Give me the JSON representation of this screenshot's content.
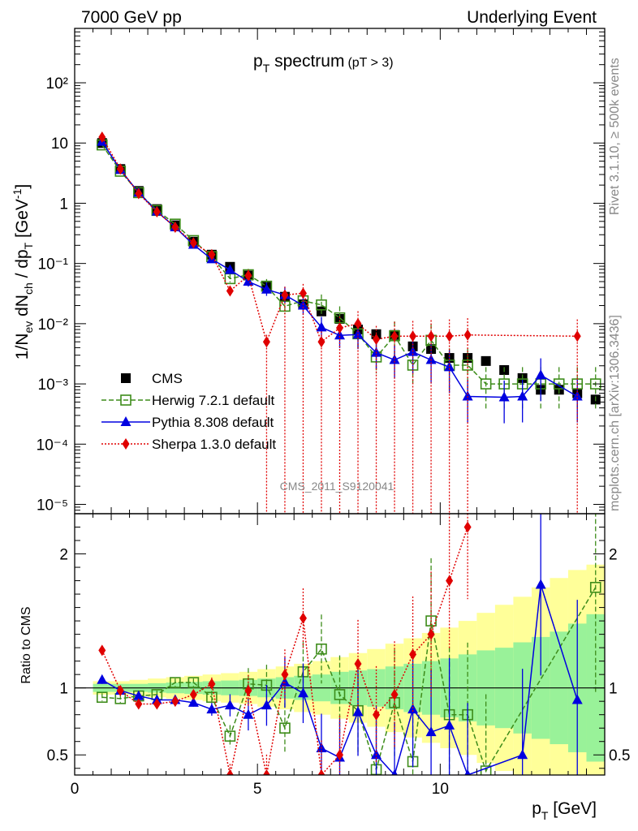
{
  "header": {
    "left": "7000 GeV pp",
    "right": "Underlying Event"
  },
  "side_labels": {
    "rivet": "Rivet 3.1.10, ≥ 500k events",
    "mcplots": "mcplots.cern.ch [arXiv:1306.3436]"
  },
  "watermark": "CMS_2011_S9120041",
  "plot_title": {
    "main": "p",
    "main_sub": "T",
    "main_rest": " spectrum",
    "cut": "(pT >  3)"
  },
  "colors": {
    "cms": "#000000",
    "herwig": "#3d8c1a",
    "pythia": "#0000e0",
    "sherpa": "#e00000",
    "band_inner": "#99f299",
    "band_outer": "#ffff99"
  },
  "chart_data": [
    {
      "type": "scatter",
      "panel": "main",
      "scale": "log",
      "ylabel": "1/N_ev dN_ch / dp_T [GeV^-1]",
      "xlabel": "p_T [GeV]",
      "xlim": [
        0,
        14.5
      ],
      "ylim": [
        7e-06,
        800
      ],
      "x_ticks": [
        "0",
        "5",
        "10"
      ],
      "y_ticks": [
        "10⁻⁵",
        "10⁻⁴",
        "10⁻³",
        "10⁻²",
        "10⁻¹",
        "1",
        "10",
        "10²"
      ],
      "legend_position": "lower-left",
      "series": [
        {
          "name": "CMS",
          "key": "cms",
          "marker": "square",
          "x": [
            0.75,
            1.25,
            1.75,
            2.25,
            2.75,
            3.25,
            3.75,
            4.25,
            4.75,
            5.25,
            5.75,
            6.25,
            6.75,
            7.25,
            7.75,
            8.25,
            8.75,
            9.25,
            9.75,
            10.25,
            10.75,
            11.25,
            11.75,
            12.25,
            12.75,
            13.25,
            13.75,
            14.25
          ],
          "y": [
            10,
            3.7,
            1.6,
            0.8,
            0.43,
            0.23,
            0.14,
            0.088,
            0.063,
            0.041,
            0.028,
            0.021,
            0.016,
            0.012,
            0.008,
            0.0067,
            0.0065,
            0.0042,
            0.0038,
            0.0027,
            0.0027,
            0.0024,
            0.0017,
            0.00125,
            0.0008,
            0.0008,
            0.0007,
            0.00055
          ]
        },
        {
          "name": "Herwig 7.2.1 default",
          "key": "herwig",
          "marker": "open-square",
          "line": "dashed",
          "x": [
            0.75,
            1.25,
            1.75,
            2.25,
            2.75,
            3.25,
            3.75,
            4.25,
            4.75,
            5.25,
            5.75,
            6.25,
            6.75,
            7.25,
            7.75,
            8.25,
            8.75,
            9.25,
            9.75,
            10.25,
            10.75,
            11.25,
            11.75,
            12.25,
            12.75,
            13.25,
            13.75,
            14.25
          ],
          "y": [
            9.3,
            3.4,
            1.5,
            0.76,
            0.45,
            0.24,
            0.13,
            0.056,
            0.065,
            0.042,
            0.0195,
            0.024,
            0.0205,
            0.0125,
            0.0068,
            0.0028,
            0.0063,
            0.00205,
            0.0053,
            0.00205,
            0.00205,
            0.001,
            0.001,
            0.001,
            0.001,
            0.001,
            0.001,
            0.001
          ]
        },
        {
          "name": "Pythia 8.308 default",
          "key": "pythia",
          "marker": "triangle",
          "line": "solid",
          "x": [
            0.75,
            1.25,
            1.75,
            2.25,
            2.75,
            3.25,
            3.75,
            4.25,
            4.75,
            5.25,
            5.75,
            6.25,
            6.75,
            7.25,
            7.75,
            8.25,
            8.75,
            9.25,
            9.75,
            10.25,
            10.75,
            11.75,
            12.25,
            12.75,
            13.75
          ],
          "y": [
            10.5,
            3.6,
            1.5,
            0.73,
            0.4,
            0.205,
            0.118,
            0.078,
            0.05,
            0.037,
            0.03,
            0.02,
            0.0087,
            0.0064,
            0.0066,
            0.0033,
            0.0025,
            0.0034,
            0.0025,
            0.0019,
            0.00062,
            0.0006,
            0.00062,
            0.0014,
            0.00062
          ]
        },
        {
          "name": "Sherpa 1.3.0 default",
          "key": "sherpa",
          "marker": "diamond",
          "line": "dotted",
          "x": [
            0.75,
            1.25,
            1.75,
            2.25,
            2.75,
            3.25,
            3.75,
            4.25,
            4.75,
            5.25,
            5.75,
            6.25,
            6.75,
            7.25,
            7.75,
            8.25,
            8.75,
            9.25,
            9.75,
            10.25,
            10.75,
            13.75
          ],
          "y": [
            12.5,
            3.7,
            1.45,
            0.72,
            0.4,
            0.22,
            0.14,
            0.035,
            0.063,
            0.005,
            0.03,
            0.032,
            0.005,
            0.0085,
            0.01,
            0.0055,
            0.0062,
            0.0062,
            0.0062,
            0.0062,
            0.0065,
            0.0062
          ]
        }
      ]
    },
    {
      "type": "scatter",
      "panel": "ratio",
      "ylabel": "Ratio to CMS",
      "xlabel": "p_T [GeV]",
      "xlim": [
        0,
        14.5
      ],
      "ylim": [
        0.35,
        2.3
      ],
      "x_ticks": [
        "0",
        "5",
        "10"
      ],
      "y_ticks": [
        "0.5",
        "1",
        "2"
      ],
      "band": {
        "x_edges": [
          0.5,
          1.0,
          1.5,
          2.0,
          2.5,
          3.0,
          3.5,
          4.0,
          4.5,
          5.0,
          5.5,
          6.0,
          6.5,
          7.0,
          7.5,
          8.0,
          8.5,
          9.0,
          9.5,
          10.0,
          10.5,
          11.0,
          11.5,
          12.0,
          12.5,
          13.0,
          13.5,
          14.0,
          14.5
        ],
        "inner": [
          0.03,
          0.03,
          0.03,
          0.035,
          0.04,
          0.045,
          0.05,
          0.055,
          0.06,
          0.07,
          0.08,
          0.09,
          0.1,
          0.12,
          0.13,
          0.14,
          0.16,
          0.18,
          0.2,
          0.22,
          0.25,
          0.28,
          0.3,
          0.34,
          0.38,
          0.42,
          0.48,
          0.55
        ],
        "outer": [
          0.05,
          0.05,
          0.06,
          0.07,
          0.08,
          0.09,
          0.1,
          0.11,
          0.12,
          0.14,
          0.16,
          0.18,
          0.2,
          0.23,
          0.26,
          0.29,
          0.33,
          0.37,
          0.41,
          0.45,
          0.5,
          0.56,
          0.62,
          0.68,
          0.75,
          0.82,
          0.88,
          0.92
        ]
      },
      "series": [
        {
          "name": "Herwig 7.2.1 default",
          "key": "herwig",
          "x": [
            0.75,
            1.25,
            1.75,
            2.25,
            2.75,
            3.25,
            3.75,
            4.25,
            4.75,
            5.25,
            5.75,
            6.25,
            6.75,
            7.25,
            7.75,
            8.25,
            8.75,
            9.25,
            9.75,
            10.25,
            10.75,
            11.25,
            14.25
          ],
          "y": [
            0.93,
            0.92,
            0.94,
            0.95,
            1.04,
            1.04,
            0.93,
            0.64,
            1.03,
            1.02,
            0.7,
            1.12,
            1.29,
            0.95,
            0.83,
            0.39,
            0.89,
            0.45,
            1.5,
            0.8,
            0.8,
            0.38,
            1.75
          ]
        },
        {
          "name": "Pythia 8.308 default",
          "key": "pythia",
          "x": [
            0.75,
            1.25,
            1.75,
            2.25,
            2.75,
            3.25,
            3.75,
            4.25,
            4.75,
            5.25,
            5.75,
            6.25,
            6.75,
            7.25,
            7.75,
            8.25,
            8.75,
            9.25,
            9.75,
            10.25,
            10.75,
            12.25,
            12.75,
            13.75
          ],
          "y": [
            1.06,
            0.98,
            0.94,
            0.91,
            0.91,
            0.89,
            0.84,
            0.87,
            0.8,
            0.87,
            1.04,
            0.96,
            0.55,
            0.48,
            0.82,
            0.5,
            0.35,
            0.84,
            0.67,
            0.72,
            0.35,
            0.5,
            1.77,
            0.91
          ]
        },
        {
          "name": "Sherpa 1.3.0 default",
          "key": "sherpa",
          "x": [
            0.75,
            1.25,
            1.75,
            2.25,
            2.75,
            3.25,
            3.75,
            4.25,
            4.75,
            5.25,
            5.75,
            6.25,
            6.75,
            7.25,
            7.75,
            8.25,
            8.75,
            9.25,
            9.75,
            10.25,
            10.75
          ],
          "y": [
            1.28,
            0.98,
            0.88,
            0.88,
            0.9,
            0.95,
            1.03,
            0.35,
            0.98,
            0.35,
            1.1,
            1.52,
            0.35,
            0.5,
            1.18,
            0.8,
            0.95,
            1.25,
            1.4,
            1.8,
            2.2
          ]
        }
      ]
    }
  ]
}
